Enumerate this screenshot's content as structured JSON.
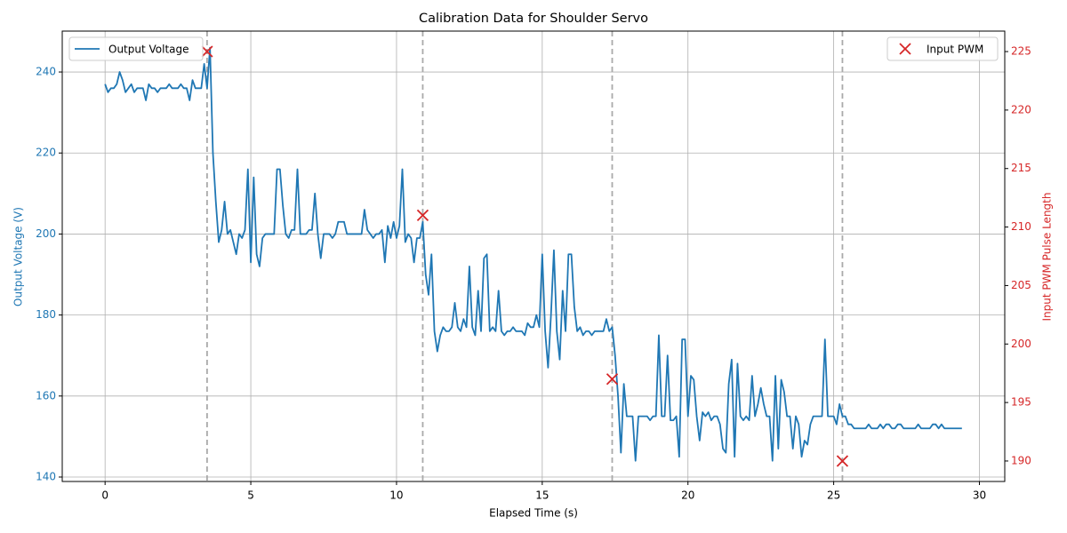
{
  "chart_data": {
    "type": "line",
    "title": "Calibration Data for Shoulder Servo",
    "xlabel": "Elapsed Time (s)",
    "ylabel": "Output Voltage (V)",
    "y2label": "Input PWM Pulse Length",
    "grid": true,
    "xlim": [
      -1.47,
      30.87
    ],
    "xticks": [
      0,
      5,
      10,
      15,
      20,
      25,
      30
    ],
    "ylim": [
      138.9,
      250.1
    ],
    "yticks": [
      140,
      160,
      180,
      200,
      220,
      240
    ],
    "y2lim": [
      188.25,
      226.75
    ],
    "y2ticks": [
      190,
      195,
      200,
      205,
      210,
      215,
      220,
      225
    ],
    "x": [
      0.0,
      0.1,
      0.2,
      0.3,
      0.4,
      0.5,
      0.6,
      0.7,
      0.8,
      0.9,
      1.0,
      1.1,
      1.2,
      1.3,
      1.4,
      1.5,
      1.6,
      1.7,
      1.8,
      1.9,
      2.0,
      2.1,
      2.2,
      2.3,
      2.4,
      2.5,
      2.6,
      2.7,
      2.8,
      2.9,
      3.0,
      3.1,
      3.2,
      3.3,
      3.4,
      3.5,
      3.6,
      3.7,
      3.8,
      3.9,
      4.0,
      4.1,
      4.2,
      4.3,
      4.4,
      4.5,
      4.6,
      4.7,
      4.8,
      4.9,
      5.0,
      5.1,
      5.2,
      5.3,
      5.4,
      5.5,
      5.6,
      5.7,
      5.8,
      5.9,
      6.0,
      6.1,
      6.2,
      6.3,
      6.4,
      6.5,
      6.6,
      6.7,
      6.8,
      6.9,
      7.0,
      7.1,
      7.2,
      7.3,
      7.4,
      7.5,
      7.6,
      7.7,
      7.8,
      7.9,
      8.0,
      8.1,
      8.2,
      8.3,
      8.4,
      8.5,
      8.6,
      8.7,
      8.8,
      8.9,
      9.0,
      9.1,
      9.2,
      9.3,
      9.4,
      9.5,
      9.6,
      9.7,
      9.8,
      9.9,
      10.0,
      10.1,
      10.2,
      10.3,
      10.4,
      10.5,
      10.6,
      10.7,
      10.8,
      10.9,
      11.0,
      11.1,
      11.2,
      11.3,
      11.4,
      11.5,
      11.6,
      11.7,
      11.8,
      11.9,
      12.0,
      12.1,
      12.2,
      12.3,
      12.4,
      12.5,
      12.6,
      12.7,
      12.8,
      12.9,
      13.0,
      13.1,
      13.2,
      13.3,
      13.4,
      13.5,
      13.6,
      13.7,
      13.8,
      13.9,
      14.0,
      14.1,
      14.2,
      14.3,
      14.4,
      14.5,
      14.6,
      14.7,
      14.8,
      14.9,
      15.0,
      15.1,
      15.2,
      15.3,
      15.4,
      15.5,
      15.6,
      15.7,
      15.8,
      15.9,
      16.0,
      16.1,
      16.2,
      16.3,
      16.4,
      16.5,
      16.6,
      16.7,
      16.8,
      16.9,
      17.0,
      17.1,
      17.2,
      17.3,
      17.4,
      17.5,
      17.6,
      17.7,
      17.8,
      17.9,
      18.0,
      18.1,
      18.2,
      18.3,
      18.4,
      18.5,
      18.6,
      18.7,
      18.8,
      18.9,
      19.0,
      19.1,
      19.2,
      19.3,
      19.4,
      19.5,
      19.6,
      19.7,
      19.8,
      19.9,
      20.0,
      20.1,
      20.2,
      20.3,
      20.4,
      20.5,
      20.6,
      20.7,
      20.8,
      20.9,
      21.0,
      21.1,
      21.2,
      21.3,
      21.4,
      21.5,
      21.6,
      21.7,
      21.8,
      21.9,
      22.0,
      22.1,
      22.2,
      22.3,
      22.4,
      22.5,
      22.6,
      22.7,
      22.8,
      22.9,
      23.0,
      23.1,
      23.2,
      23.3,
      23.4,
      23.5,
      23.6,
      23.7,
      23.8,
      23.9,
      24.0,
      24.1,
      24.2,
      24.3,
      24.4,
      24.5,
      24.6,
      24.7,
      24.8,
      24.9,
      25.0,
      25.1,
      25.2,
      25.3,
      25.4,
      25.5,
      25.6,
      25.7,
      25.8,
      25.9,
      26.0,
      26.1,
      26.2,
      26.3,
      26.4,
      26.5,
      26.6,
      26.7,
      26.8,
      26.9,
      27.0,
      27.1,
      27.2,
      27.3,
      27.4,
      27.5,
      27.6,
      27.7,
      27.8,
      27.9,
      28.0,
      28.1,
      28.2,
      28.3,
      28.4,
      28.5,
      28.6,
      28.7,
      28.8,
      28.9,
      29.0,
      29.1,
      29.2,
      29.3,
      29.4
    ],
    "series": [
      {
        "name": "Output Voltage",
        "color": "#1f77b4",
        "legend": "upper left",
        "values": [
          237,
          235,
          236,
          236,
          237,
          240,
          238,
          235,
          236,
          237,
          235,
          236,
          236,
          236,
          233,
          237,
          236,
          236,
          235,
          236,
          236,
          236,
          237,
          236,
          236,
          236,
          237,
          236,
          236,
          233,
          238,
          236,
          236,
          236,
          242,
          236,
          246,
          220,
          208,
          198,
          201,
          208,
          200,
          201,
          198,
          195,
          200,
          199,
          201,
          216,
          193,
          214,
          195,
          192,
          199,
          200,
          200,
          200,
          200,
          216,
          216,
          207,
          200,
          199,
          201,
          201,
          216,
          200,
          200,
          200,
          201,
          201,
          210,
          200,
          194,
          200,
          200,
          200,
          199,
          200,
          203,
          203,
          203,
          200,
          200,
          200,
          200,
          200,
          200,
          206,
          201,
          200,
          199,
          200,
          200,
          201,
          193,
          202,
          199,
          203,
          199,
          202,
          216,
          198,
          200,
          199,
          193,
          199,
          199,
          203,
          190,
          185,
          195,
          176,
          171,
          175,
          177,
          176,
          176,
          177,
          183,
          177,
          176,
          179,
          177,
          192,
          177,
          175,
          186,
          176,
          194,
          195,
          176,
          177,
          176,
          186,
          176,
          175,
          176,
          176,
          177,
          176,
          176,
          176,
          175,
          178,
          177,
          177,
          180,
          177,
          195,
          176,
          167,
          180,
          196,
          176,
          169,
          186,
          176,
          195,
          195,
          182,
          176,
          177,
          175,
          176,
          176,
          175,
          176,
          176,
          176,
          176,
          179,
          176,
          177,
          170,
          160,
          146,
          163,
          155,
          155,
          155,
          144,
          155,
          155,
          155,
          155,
          154,
          155,
          155,
          175,
          155,
          155,
          170,
          154,
          154,
          155,
          145,
          174,
          174,
          155,
          165,
          164,
          155,
          149,
          156,
          155,
          156,
          154,
          155,
          155,
          153,
          147,
          146,
          163,
          169,
          145,
          168,
          155,
          154,
          155,
          154,
          165,
          155,
          158,
          162,
          158,
          155,
          155,
          144,
          165,
          147,
          164,
          161,
          155,
          155,
          147,
          155,
          153,
          145,
          149,
          148,
          153,
          155,
          155,
          155,
          155,
          174,
          155,
          155,
          155,
          153,
          158,
          155,
          155,
          153,
          153,
          152,
          152,
          152,
          152,
          152,
          153,
          152,
          152,
          152,
          153,
          152,
          153,
          153,
          152,
          152,
          153,
          153,
          152,
          152,
          152,
          152,
          152,
          153,
          152,
          152,
          152,
          152,
          153,
          153,
          152,
          153,
          152,
          152,
          152,
          152,
          152,
          152,
          152
        ]
      },
      {
        "name": "Input PWM",
        "type": "scatter",
        "axis": "y2",
        "color": "#d62728",
        "legend": "upper right",
        "x": [
          3.5,
          10.9,
          17.4,
          25.3
        ],
        "values": [
          225,
          211,
          197,
          190
        ]
      }
    ]
  }
}
